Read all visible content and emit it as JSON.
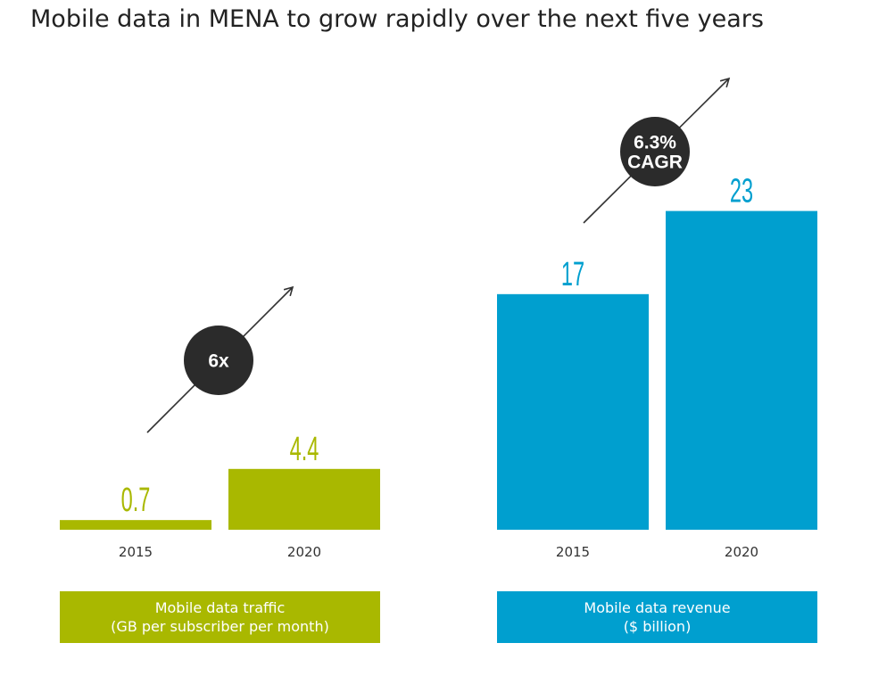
{
  "title": "Mobile data in MENA to grow rapidly over the next five years",
  "colors": {
    "traffic": "#a9b800",
    "revenue": "#009fcf",
    "badge": "#2b2b2b"
  },
  "chart_data": [
    {
      "type": "bar",
      "categories": [
        "2015",
        "2020"
      ],
      "values": [
        0.7,
        4.4
      ],
      "value_labels": [
        "0.7",
        "4.4"
      ],
      "caption_line1": "Mobile data traffic",
      "caption_line2": "(GB per subscriber per month)",
      "badge": [
        "6x"
      ],
      "color": "#a9b800"
    },
    {
      "type": "bar",
      "categories": [
        "2015",
        "2020"
      ],
      "values": [
        17,
        23
      ],
      "value_labels": [
        "17",
        "23"
      ],
      "caption_line1": "Mobile data revenue",
      "caption_line2": "($ billion)",
      "badge": [
        "6.3%",
        "CAGR"
      ],
      "color": "#009fcf"
    }
  ]
}
